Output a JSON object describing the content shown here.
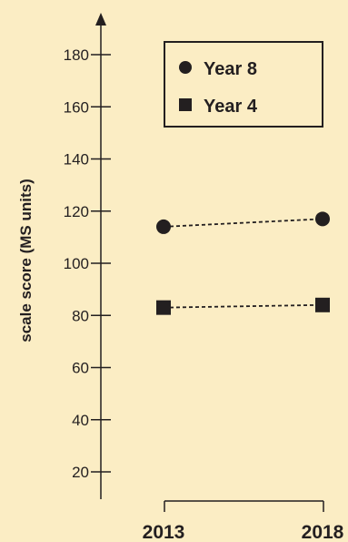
{
  "chart_data": {
    "type": "line",
    "title": "",
    "xlabel": "",
    "ylabel": "scale score (MS units)",
    "categories": [
      "2013",
      "2018"
    ],
    "yticks": [
      20,
      40,
      60,
      80,
      100,
      120,
      140,
      160,
      180
    ],
    "ylim": [
      10,
      190
    ],
    "grid": false,
    "legend_position": "top-right",
    "series": [
      {
        "name": "Year 8",
        "marker": "circle",
        "values": [
          114,
          117
        ]
      },
      {
        "name": "Year 4",
        "marker": "square",
        "values": [
          83,
          84
        ]
      }
    ]
  },
  "colors": {
    "background": "#fbedc4",
    "ink": "#231f20"
  }
}
